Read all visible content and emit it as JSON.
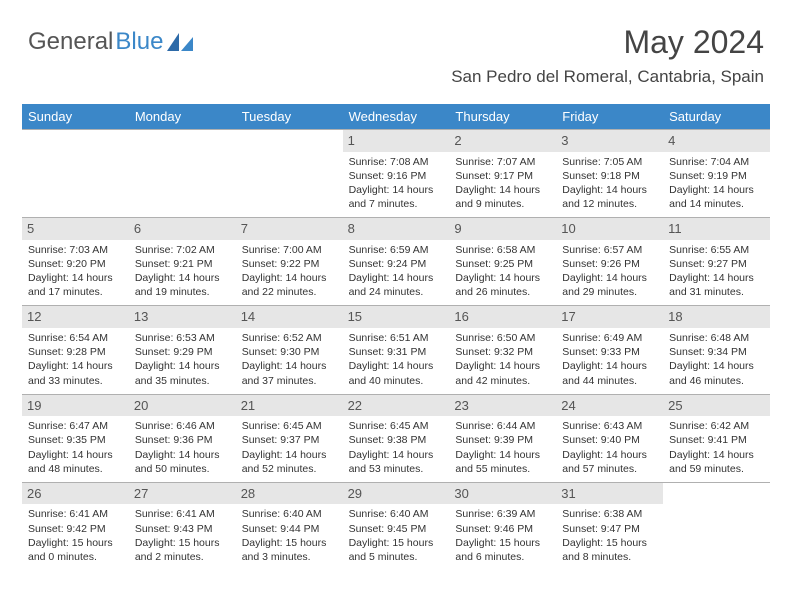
{
  "logo": {
    "part1": "General",
    "part2": "Blue"
  },
  "header": {
    "month": "May 2024",
    "location": "San Pedro del Romeral, Cantabria, Spain"
  },
  "weekdays": [
    "Sunday",
    "Monday",
    "Tuesday",
    "Wednesday",
    "Thursday",
    "Friday",
    "Saturday"
  ],
  "colors": {
    "accent": "#3b87c8",
    "dayHeaderBg": "#e6e6e6",
    "border": "#b0b0b0",
    "text": "#333"
  },
  "days": [
    {
      "n": "",
      "empty": true
    },
    {
      "n": "",
      "empty": true
    },
    {
      "n": "",
      "empty": true
    },
    {
      "n": "1",
      "sr": "Sunrise: 7:08 AM",
      "ss": "Sunset: 9:16 PM",
      "d1": "Daylight: 14 hours",
      "d2": "and 7 minutes."
    },
    {
      "n": "2",
      "sr": "Sunrise: 7:07 AM",
      "ss": "Sunset: 9:17 PM",
      "d1": "Daylight: 14 hours",
      "d2": "and 9 minutes."
    },
    {
      "n": "3",
      "sr": "Sunrise: 7:05 AM",
      "ss": "Sunset: 9:18 PM",
      "d1": "Daylight: 14 hours",
      "d2": "and 12 minutes."
    },
    {
      "n": "4",
      "sr": "Sunrise: 7:04 AM",
      "ss": "Sunset: 9:19 PM",
      "d1": "Daylight: 14 hours",
      "d2": "and 14 minutes."
    },
    {
      "n": "5",
      "sr": "Sunrise: 7:03 AM",
      "ss": "Sunset: 9:20 PM",
      "d1": "Daylight: 14 hours",
      "d2": "and 17 minutes."
    },
    {
      "n": "6",
      "sr": "Sunrise: 7:02 AM",
      "ss": "Sunset: 9:21 PM",
      "d1": "Daylight: 14 hours",
      "d2": "and 19 minutes."
    },
    {
      "n": "7",
      "sr": "Sunrise: 7:00 AM",
      "ss": "Sunset: 9:22 PM",
      "d1": "Daylight: 14 hours",
      "d2": "and 22 minutes."
    },
    {
      "n": "8",
      "sr": "Sunrise: 6:59 AM",
      "ss": "Sunset: 9:24 PM",
      "d1": "Daylight: 14 hours",
      "d2": "and 24 minutes."
    },
    {
      "n": "9",
      "sr": "Sunrise: 6:58 AM",
      "ss": "Sunset: 9:25 PM",
      "d1": "Daylight: 14 hours",
      "d2": "and 26 minutes."
    },
    {
      "n": "10",
      "sr": "Sunrise: 6:57 AM",
      "ss": "Sunset: 9:26 PM",
      "d1": "Daylight: 14 hours",
      "d2": "and 29 minutes."
    },
    {
      "n": "11",
      "sr": "Sunrise: 6:55 AM",
      "ss": "Sunset: 9:27 PM",
      "d1": "Daylight: 14 hours",
      "d2": "and 31 minutes."
    },
    {
      "n": "12",
      "sr": "Sunrise: 6:54 AM",
      "ss": "Sunset: 9:28 PM",
      "d1": "Daylight: 14 hours",
      "d2": "and 33 minutes."
    },
    {
      "n": "13",
      "sr": "Sunrise: 6:53 AM",
      "ss": "Sunset: 9:29 PM",
      "d1": "Daylight: 14 hours",
      "d2": "and 35 minutes."
    },
    {
      "n": "14",
      "sr": "Sunrise: 6:52 AM",
      "ss": "Sunset: 9:30 PM",
      "d1": "Daylight: 14 hours",
      "d2": "and 37 minutes."
    },
    {
      "n": "15",
      "sr": "Sunrise: 6:51 AM",
      "ss": "Sunset: 9:31 PM",
      "d1": "Daylight: 14 hours",
      "d2": "and 40 minutes."
    },
    {
      "n": "16",
      "sr": "Sunrise: 6:50 AM",
      "ss": "Sunset: 9:32 PM",
      "d1": "Daylight: 14 hours",
      "d2": "and 42 minutes."
    },
    {
      "n": "17",
      "sr": "Sunrise: 6:49 AM",
      "ss": "Sunset: 9:33 PM",
      "d1": "Daylight: 14 hours",
      "d2": "and 44 minutes."
    },
    {
      "n": "18",
      "sr": "Sunrise: 6:48 AM",
      "ss": "Sunset: 9:34 PM",
      "d1": "Daylight: 14 hours",
      "d2": "and 46 minutes."
    },
    {
      "n": "19",
      "sr": "Sunrise: 6:47 AM",
      "ss": "Sunset: 9:35 PM",
      "d1": "Daylight: 14 hours",
      "d2": "and 48 minutes."
    },
    {
      "n": "20",
      "sr": "Sunrise: 6:46 AM",
      "ss": "Sunset: 9:36 PM",
      "d1": "Daylight: 14 hours",
      "d2": "and 50 minutes."
    },
    {
      "n": "21",
      "sr": "Sunrise: 6:45 AM",
      "ss": "Sunset: 9:37 PM",
      "d1": "Daylight: 14 hours",
      "d2": "and 52 minutes."
    },
    {
      "n": "22",
      "sr": "Sunrise: 6:45 AM",
      "ss": "Sunset: 9:38 PM",
      "d1": "Daylight: 14 hours",
      "d2": "and 53 minutes."
    },
    {
      "n": "23",
      "sr": "Sunrise: 6:44 AM",
      "ss": "Sunset: 9:39 PM",
      "d1": "Daylight: 14 hours",
      "d2": "and 55 minutes."
    },
    {
      "n": "24",
      "sr": "Sunrise: 6:43 AM",
      "ss": "Sunset: 9:40 PM",
      "d1": "Daylight: 14 hours",
      "d2": "and 57 minutes."
    },
    {
      "n": "25",
      "sr": "Sunrise: 6:42 AM",
      "ss": "Sunset: 9:41 PM",
      "d1": "Daylight: 14 hours",
      "d2": "and 59 minutes."
    },
    {
      "n": "26",
      "sr": "Sunrise: 6:41 AM",
      "ss": "Sunset: 9:42 PM",
      "d1": "Daylight: 15 hours",
      "d2": "and 0 minutes."
    },
    {
      "n": "27",
      "sr": "Sunrise: 6:41 AM",
      "ss": "Sunset: 9:43 PM",
      "d1": "Daylight: 15 hours",
      "d2": "and 2 minutes."
    },
    {
      "n": "28",
      "sr": "Sunrise: 6:40 AM",
      "ss": "Sunset: 9:44 PM",
      "d1": "Daylight: 15 hours",
      "d2": "and 3 minutes."
    },
    {
      "n": "29",
      "sr": "Sunrise: 6:40 AM",
      "ss": "Sunset: 9:45 PM",
      "d1": "Daylight: 15 hours",
      "d2": "and 5 minutes."
    },
    {
      "n": "30",
      "sr": "Sunrise: 6:39 AM",
      "ss": "Sunset: 9:46 PM",
      "d1": "Daylight: 15 hours",
      "d2": "and 6 minutes."
    },
    {
      "n": "31",
      "sr": "Sunrise: 6:38 AM",
      "ss": "Sunset: 9:47 PM",
      "d1": "Daylight: 15 hours",
      "d2": "and 8 minutes."
    },
    {
      "n": "",
      "empty": true
    }
  ]
}
